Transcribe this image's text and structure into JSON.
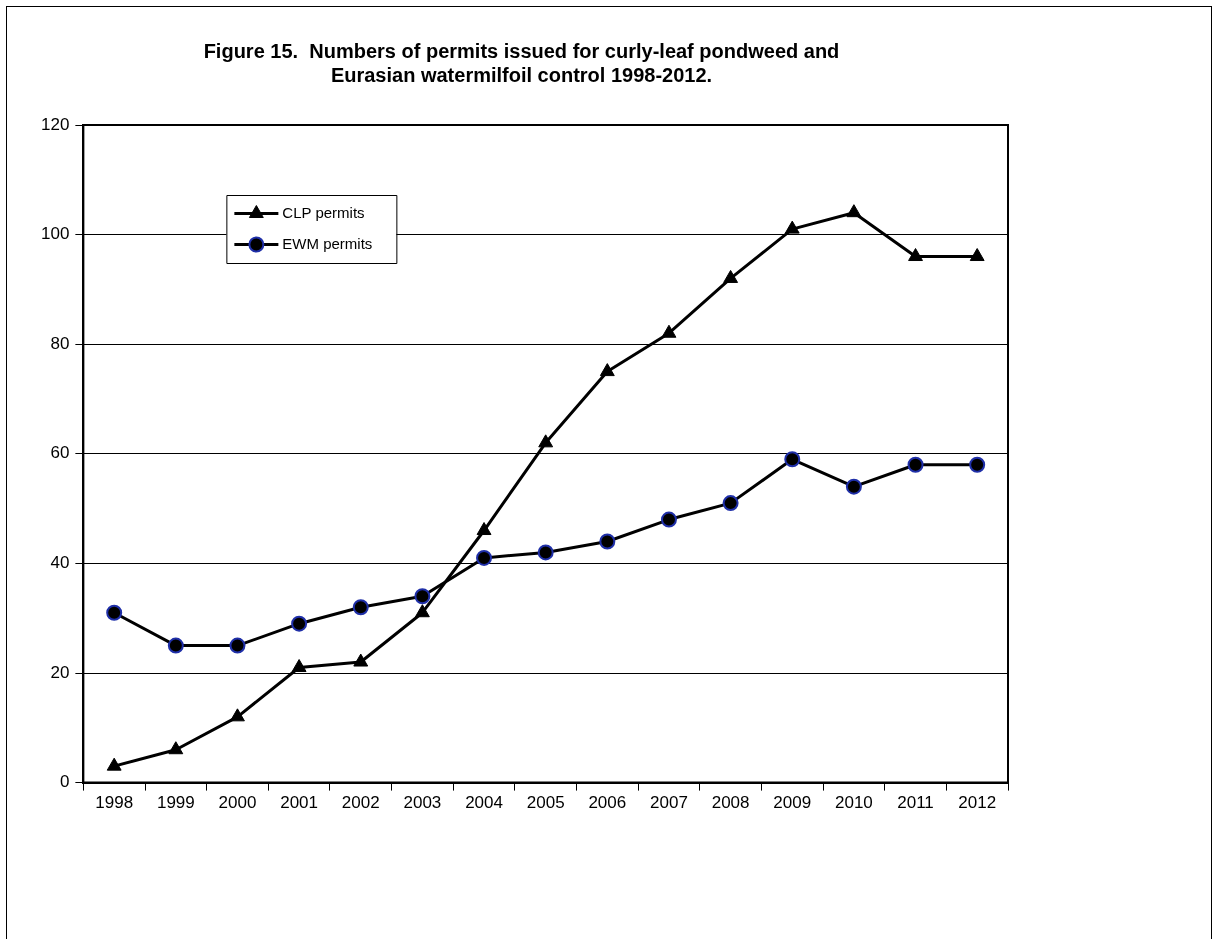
{
  "chart_data": {
    "type": "line",
    "title": "Figure 15.  Numbers of permits issued for curly-leaf pondweed and Eurasian watermilfoil control 1998-2012.",
    "categories": [
      "1998",
      "1999",
      "2000",
      "2001",
      "2002",
      "2003",
      "2004",
      "2005",
      "2006",
      "2007",
      "2008",
      "2009",
      "2010",
      "2011",
      "2012"
    ],
    "series": [
      {
        "name": "CLP permits",
        "color": "#000000",
        "marker": "triangle",
        "values": [
          3,
          6,
          12,
          21,
          22,
          31,
          46,
          62,
          75,
          82,
          92,
          101,
          104,
          96,
          96
        ]
      },
      {
        "name": "EWM permits",
        "color": "#000000",
        "marker": "circle",
        "values": [
          31,
          25,
          25,
          29,
          32,
          34,
          41,
          42,
          44,
          48,
          51,
          59,
          54,
          58,
          58
        ]
      }
    ],
    "ylim": [
      0,
      120
    ],
    "yticks": [
      0,
      20,
      40,
      60,
      80,
      100,
      120
    ],
    "grid": "y",
    "legend": "top left",
    "line_style": "solid"
  }
}
